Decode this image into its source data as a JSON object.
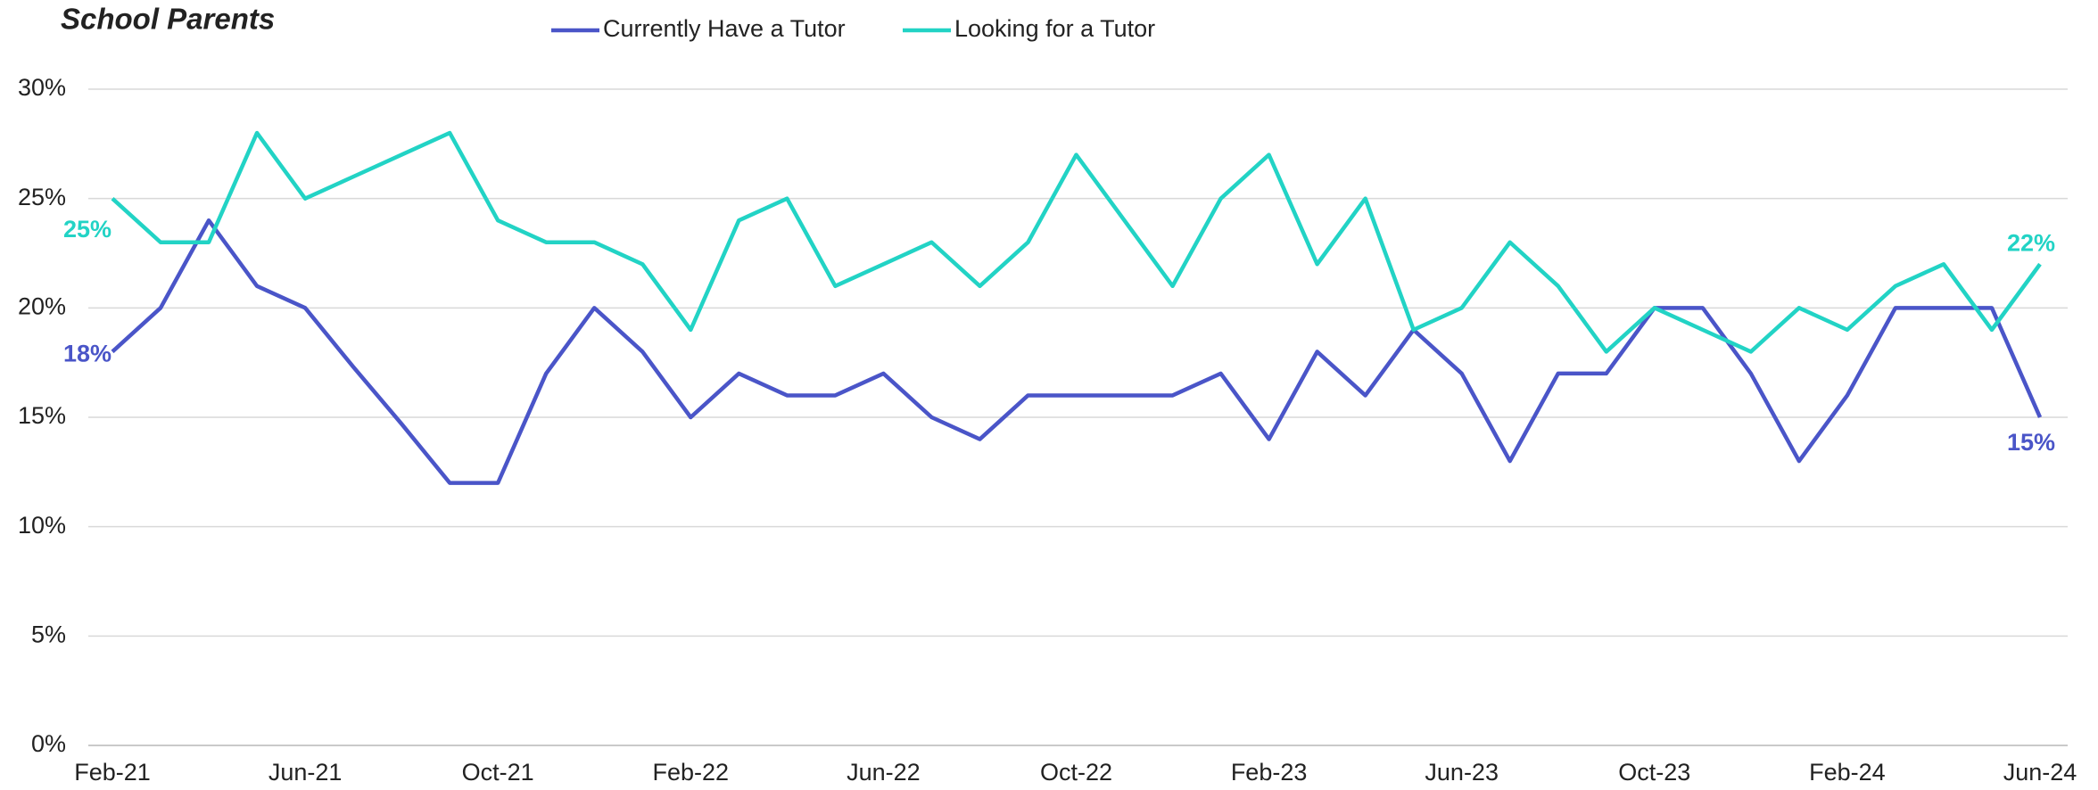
{
  "chart_data": {
    "type": "line",
    "title": "School Parents",
    "categories": [
      "Feb-21",
      null,
      null,
      null,
      "Jun-21",
      null,
      null,
      null,
      "Oct-21",
      null,
      null,
      null,
      "Feb-22",
      null,
      null,
      null,
      "Jun-22",
      null,
      null,
      null,
      "Oct-22",
      null,
      null,
      null,
      "Feb-23",
      null,
      null,
      null,
      "Jun-23",
      null,
      null,
      null,
      "Oct-23",
      null,
      null,
      null,
      "Feb-24",
      null,
      null,
      null,
      "Jun-24"
    ],
    "series": [
      {
        "name": "Currently Have a Tutor",
        "color": "#4a55c8",
        "values": [
          18,
          20,
          24,
          21,
          20,
          17.3,
          14.7,
          12,
          12,
          17,
          20,
          18,
          15,
          17,
          16,
          16,
          17,
          15,
          14,
          16,
          16,
          16,
          16,
          17,
          14,
          18,
          16,
          19,
          17,
          13,
          17,
          17,
          20,
          20,
          17,
          13,
          16,
          20,
          20,
          20,
          15
        ],
        "value_labels": [
          "18%",
          null,
          null,
          null,
          null,
          null,
          null,
          null,
          null,
          null,
          null,
          null,
          null,
          null,
          null,
          null,
          null,
          null,
          null,
          null,
          null,
          null,
          null,
          null,
          null,
          null,
          null,
          null,
          null,
          null,
          null,
          null,
          null,
          null,
          null,
          null,
          null,
          null,
          null,
          null,
          "15%"
        ]
      },
      {
        "name": "Looking for a Tutor",
        "color": "#22d3c5",
        "values": [
          25,
          23,
          23,
          28,
          25,
          26,
          27,
          28,
          24,
          23,
          23,
          22,
          19,
          24,
          25,
          21,
          22,
          23,
          21,
          23,
          27,
          24,
          21,
          25,
          27,
          22,
          25,
          19,
          20,
          23,
          21,
          18,
          20,
          19,
          18,
          20,
          19,
          21,
          22,
          19,
          22
        ],
        "value_labels": [
          "25%",
          null,
          null,
          null,
          null,
          null,
          null,
          null,
          null,
          null,
          null,
          null,
          null,
          null,
          null,
          null,
          null,
          null,
          null,
          null,
          null,
          null,
          null,
          null,
          null,
          null,
          null,
          null,
          null,
          null,
          null,
          null,
          null,
          null,
          null,
          null,
          null,
          null,
          null,
          null,
          "22%"
        ]
      }
    ],
    "ylim": [
      0,
      30
    ],
    "yticks": [
      {
        "value": 0,
        "label": "0%"
      },
      {
        "value": 5,
        "label": "5%"
      },
      {
        "value": 10,
        "label": "10%"
      },
      {
        "value": 15,
        "label": "15%"
      },
      {
        "value": 20,
        "label": "20%"
      },
      {
        "value": 25,
        "label": "25%"
      },
      {
        "value": 30,
        "label": "30%"
      }
    ],
    "grid": true,
    "legend": "top"
  }
}
